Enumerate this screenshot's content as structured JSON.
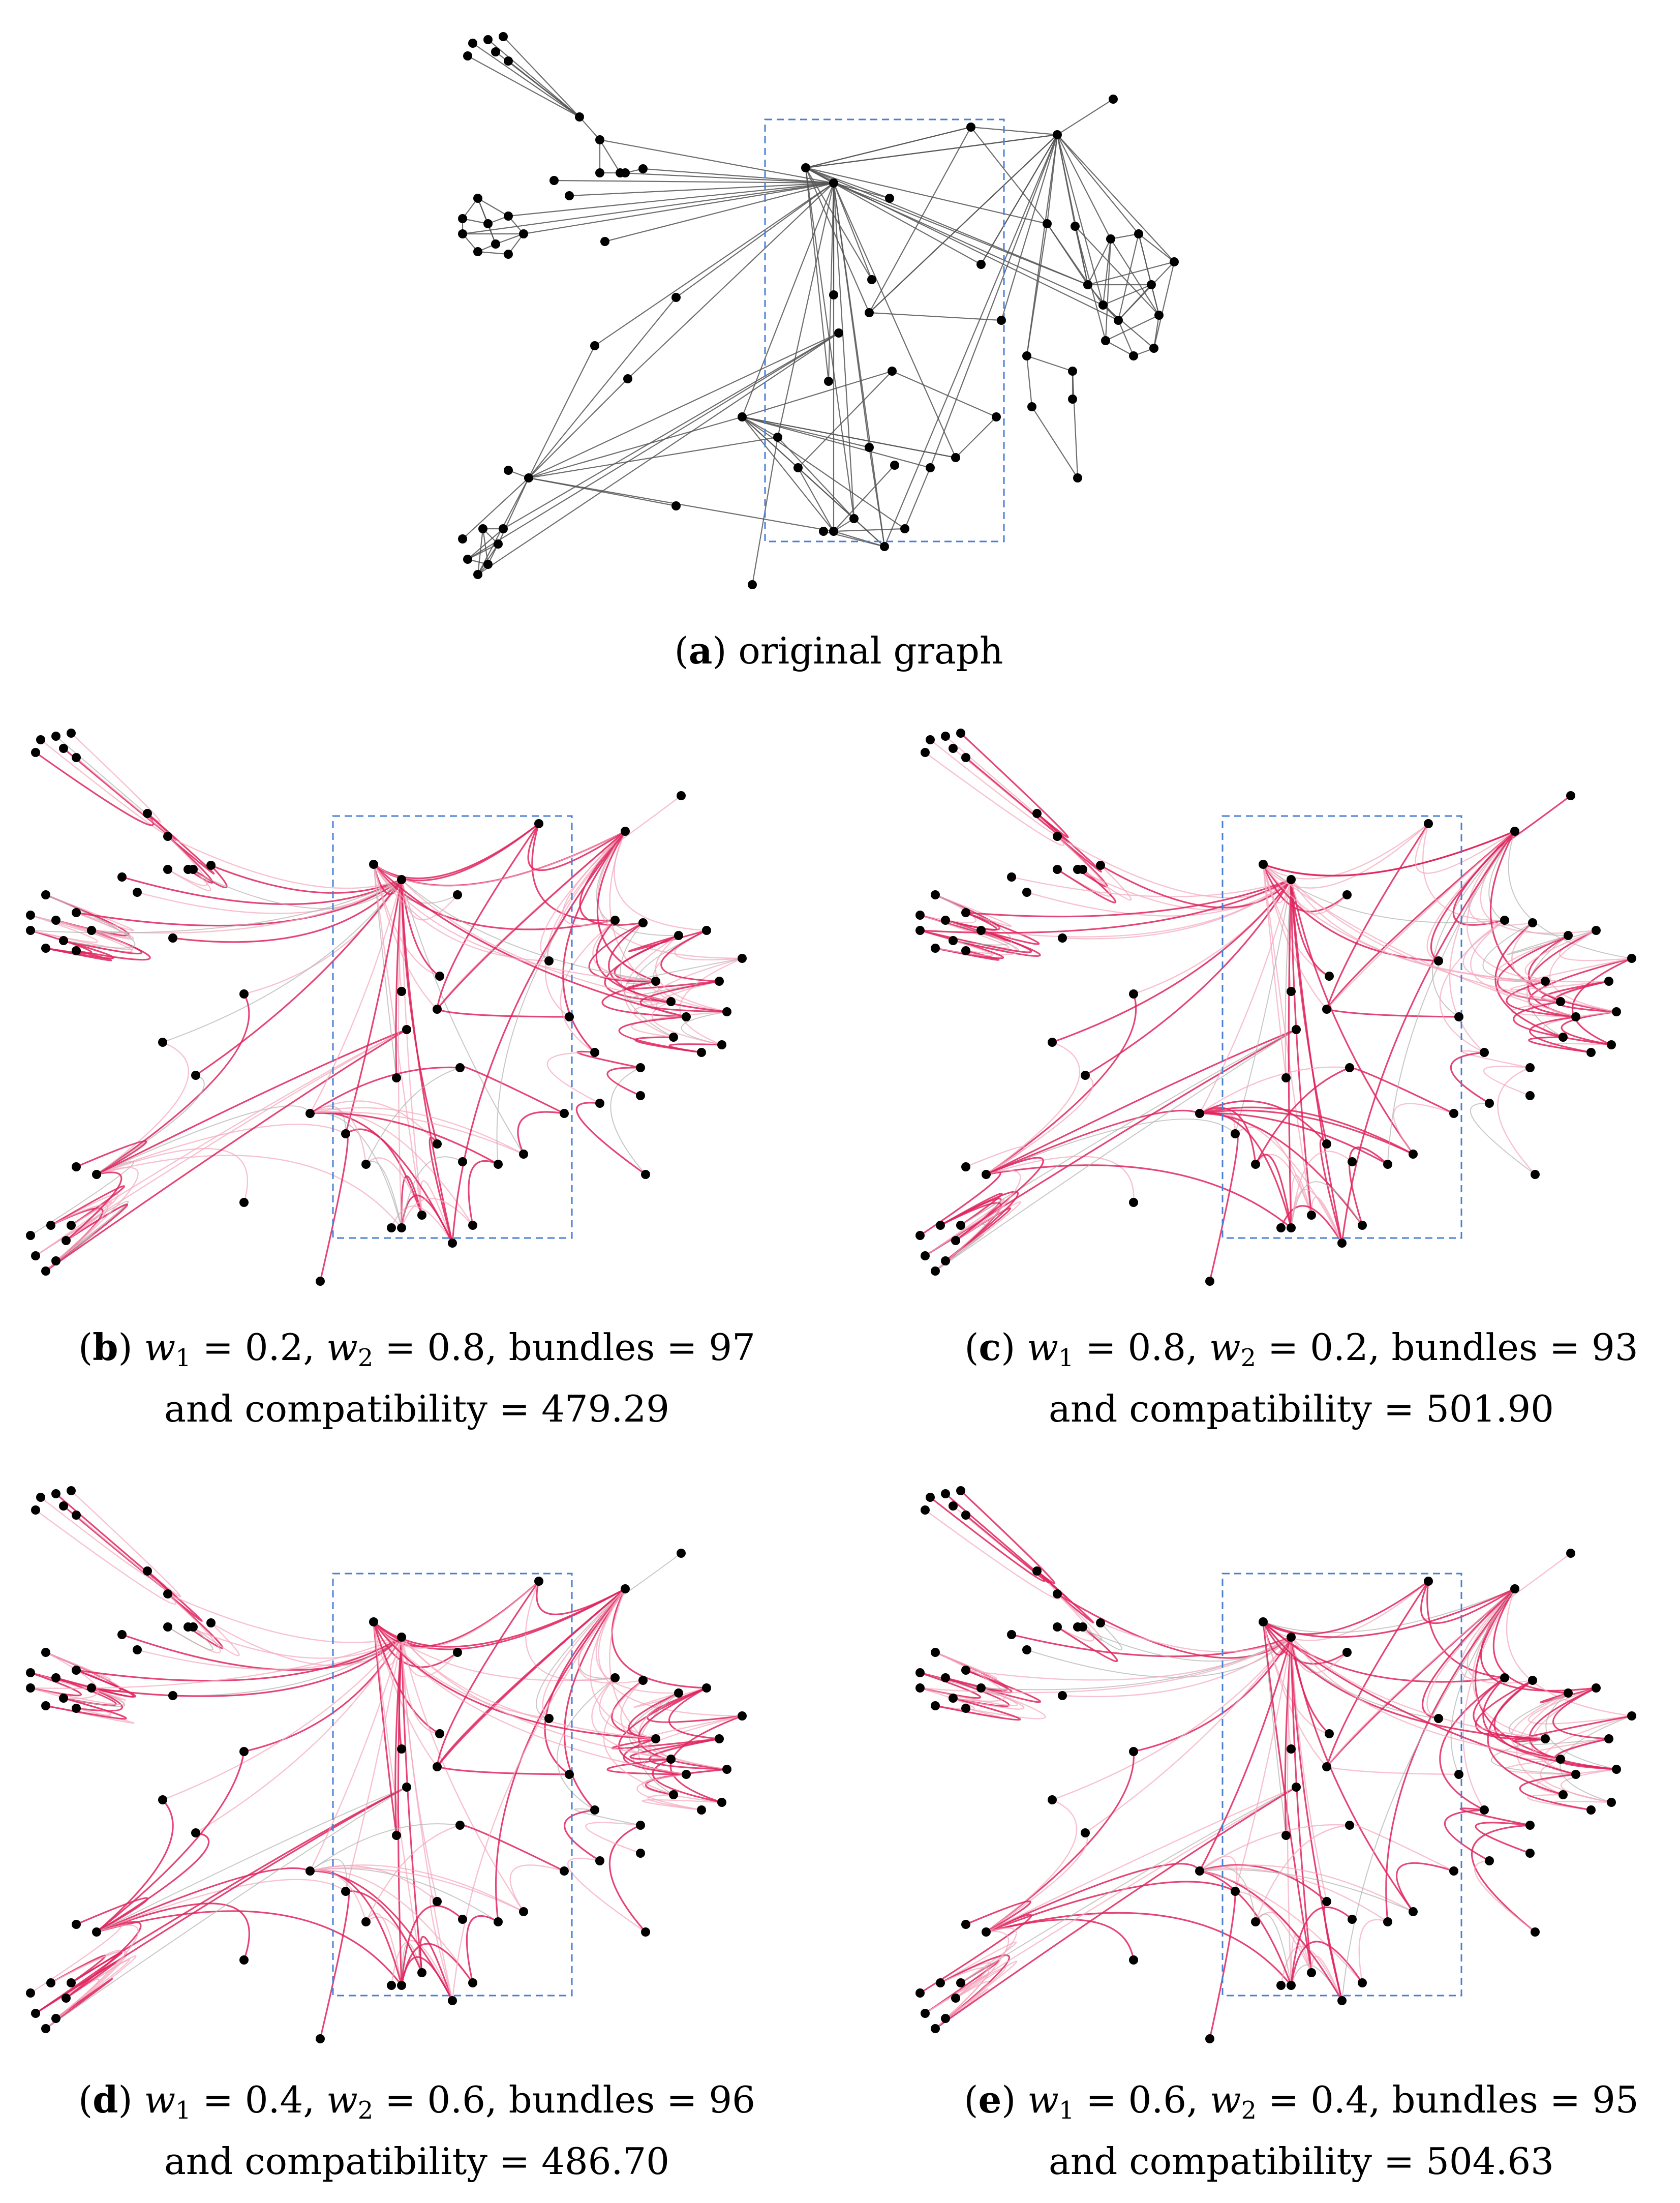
{
  "figure": {
    "panels": [
      {
        "id": "a",
        "style": "original",
        "caption": {
          "label": "a",
          "line1": "original graph"
        }
      },
      {
        "id": "b",
        "style": "bundled",
        "caption": {
          "label": "b",
          "w1": "0.2",
          "w2": "0.8",
          "bundles": "97",
          "compatibility": "479.29"
        }
      },
      {
        "id": "c",
        "style": "bundled",
        "caption": {
          "label": "c",
          "w1": "0.8",
          "w2": "0.2",
          "bundles": "93",
          "compatibility": "501.90"
        }
      },
      {
        "id": "d",
        "style": "bundled",
        "caption": {
          "label": "d",
          "w1": "0.4",
          "w2": "0.6",
          "bundles": "96",
          "compatibility": "486.70"
        }
      },
      {
        "id": "e",
        "style": "bundled",
        "caption": {
          "label": "e",
          "w1": "0.6",
          "w2": "0.4",
          "bundles": "95",
          "compatibility": "504.63"
        }
      }
    ],
    "colors": {
      "node": "#000000",
      "original_edge": "#555555",
      "bundled_edge": "#e0245e",
      "bundled_edge_light": "#f4a6bd",
      "unbundled_edge": "#b0b0b0",
      "highlight_box": "#4a7fd4"
    }
  }
}
